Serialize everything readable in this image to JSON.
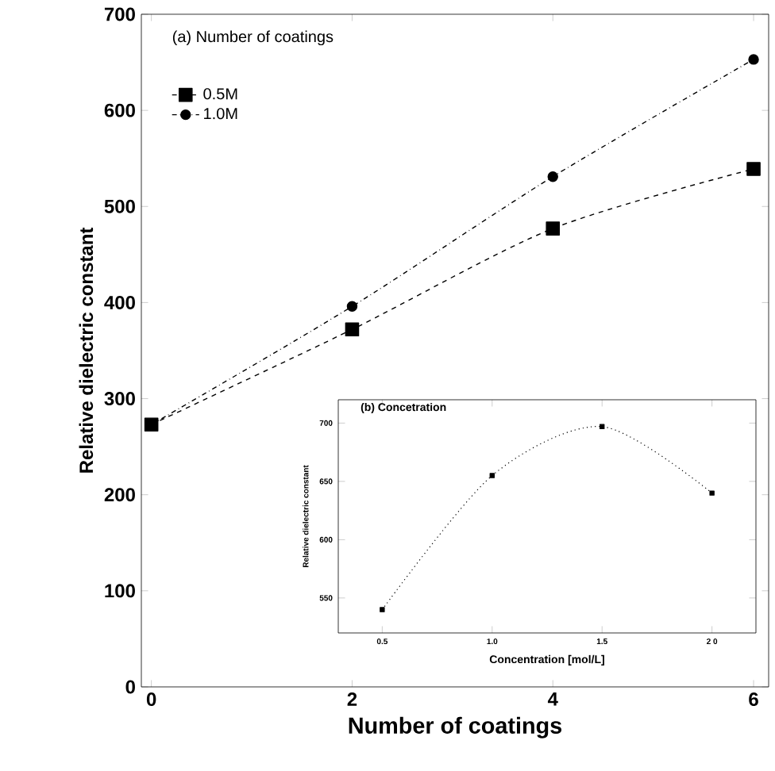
{
  "chart_data": [
    {
      "type": "line",
      "title": "(a) Number of coatings",
      "xlabel": "Number of coatings",
      "ylabel": "Relative dielectric constant",
      "x": [
        0,
        2,
        4,
        6
      ],
      "xlim": [
        -0.1,
        6.15
      ],
      "ylim": [
        0,
        700
      ],
      "xticks": [
        0,
        2,
        4,
        6
      ],
      "yticks": [
        0,
        100,
        200,
        300,
        400,
        500,
        600,
        700
      ],
      "legend": "top left",
      "series": [
        {
          "name": "0.5M",
          "color": "#000000",
          "marker": "square",
          "line_style": "dashed",
          "values": [
            273,
            372,
            477,
            539
          ]
        },
        {
          "name": "1.0M",
          "color": "#000000",
          "marker": "circle",
          "line_style": "dashdot",
          "values": [
            273,
            396,
            531,
            653
          ]
        }
      ]
    },
    {
      "type": "line",
      "title": "(b) Concetration",
      "xlabel": "Concentration [mol/L]",
      "ylabel": "Relative dielectric constant",
      "x": [
        0.5,
        1.0,
        1.5,
        2.0
      ],
      "xlim": [
        0.3,
        2.2
      ],
      "ylim": [
        520,
        720
      ],
      "xticks": [
        {
          "value": 0.5,
          "label": "0.5"
        },
        {
          "value": 1.0,
          "label": "1.0"
        },
        {
          "value": 1.5,
          "label": "1.5"
        },
        {
          "value": 2.0,
          "label": "2 0"
        }
      ],
      "yticks": [
        550,
        600,
        650,
        700
      ],
      "color": "#000000",
      "marker": "square",
      "line_style": "dotted",
      "values": [
        540,
        655,
        697,
        640
      ]
    }
  ]
}
